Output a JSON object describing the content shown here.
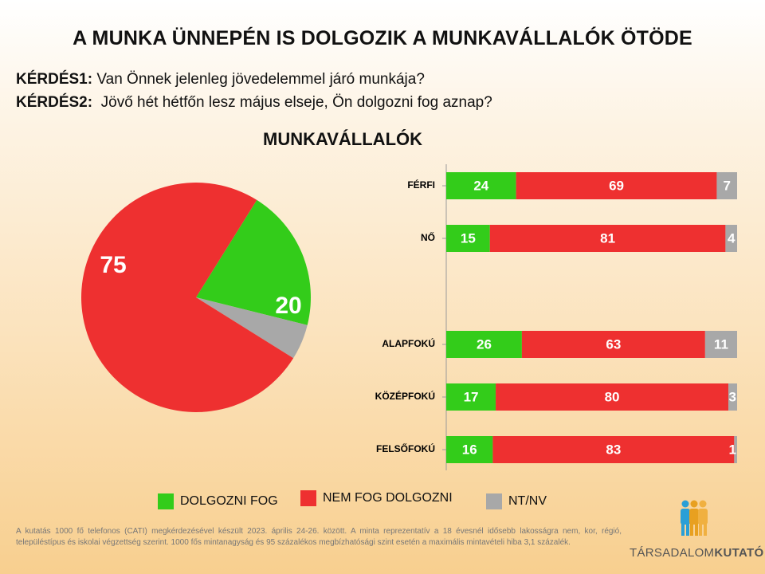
{
  "title": "A MUNKA ÜNNEPÉN IS DOLGOZIK A MUNKAVÁLLALÓK ÖTÖDE",
  "questions": [
    {
      "label": "KÉRDÉS1:",
      "text": "Van Önnek jelenleg jövedelemmel járó munkája?"
    },
    {
      "label": "KÉRDÉS2:",
      "text": "Jövő hét hétfőn lesz május elseje, Ön dolgozni fog aznap?"
    }
  ],
  "subtitle": "MUNKAVÁLLALÓK",
  "colors": {
    "work": "#33cc1a",
    "nowork": "#ee3030",
    "na": "#a8a8a8"
  },
  "chart_data": [
    {
      "type": "pie",
      "slices": [
        {
          "name": "DOLGOZNI FOG",
          "value": 20
        },
        {
          "name": "NT/NV",
          "value": 5
        },
        {
          "name": "NEM FOG DOLGOZNI",
          "value": 75
        }
      ]
    },
    {
      "type": "bar",
      "orientation": "horizontal",
      "stacked": true,
      "categories": [
        "FÉRFI",
        "NŐ",
        "ALAPFOKÚ",
        "KÖZÉPFOKÚ",
        "FELSŐFOKÚ"
      ],
      "series": [
        {
          "name": "DOLGOZNI FOG",
          "values": [
            24,
            15,
            26,
            17,
            16
          ]
        },
        {
          "name": "NEM FOG DOLGOZNI",
          "values": [
            69,
            81,
            63,
            80,
            83
          ]
        },
        {
          "name": "NT/NV",
          "values": [
            7,
            4,
            11,
            3,
            1
          ]
        }
      ],
      "xlim": [
        0,
        100
      ],
      "legend": "bottom"
    }
  ],
  "legend": [
    {
      "label": "DOLGOZNI FOG"
    },
    {
      "label": "NEM FOG DOLGOZNI"
    },
    {
      "label": "NT/NV"
    }
  ],
  "footnote": "A kutatás 1000 fő telefonos (CATI) megkérdezésével készült 2023. április 24-26. között. A minta reprezentatív a 18 évesnél idősebb lakosságra nem, kor, régió, településtípus és iskolai végzettség szerint. 1000 fős mintanagyság és 95 százalékos megbízhatósági szint esetén a maximális mintavételi hiba 3,1 százalék.",
  "logo": {
    "text_light": "TÁRSADALOM",
    "text_bold": "KUTATÓ"
  }
}
